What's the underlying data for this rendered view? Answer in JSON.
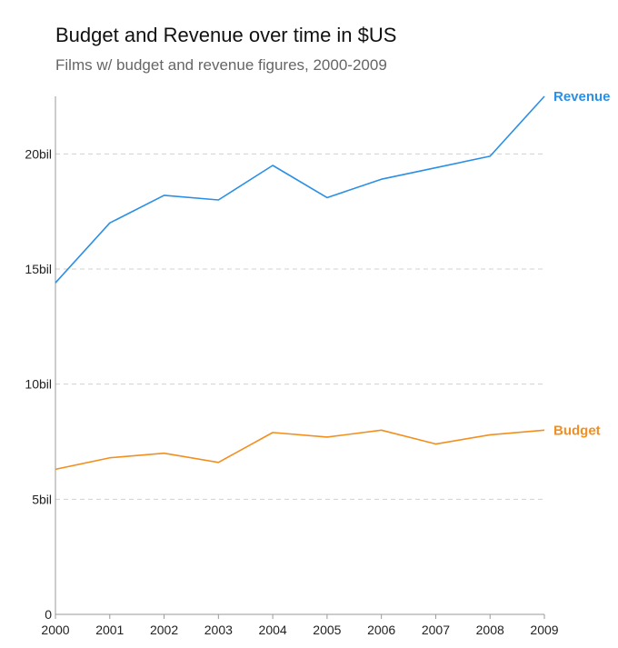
{
  "chart_data": {
    "type": "line",
    "title": "Budget and Revenue over time in $US",
    "subtitle": "Films w/ budget and revenue figures, 2000-2009",
    "x": [
      2000,
      2001,
      2002,
      2003,
      2004,
      2005,
      2006,
      2007,
      2008,
      2009
    ],
    "x_tick_labels": [
      "2000",
      "2001",
      "2002",
      "2003",
      "2004",
      "2005",
      "2006",
      "2007",
      "2008",
      "2009"
    ],
    "y_ticks": [
      0,
      5,
      10,
      15,
      20
    ],
    "y_tick_labels": [
      "0",
      "5bil",
      "10bil",
      "15bil",
      "20bil"
    ],
    "ylim": [
      0,
      22.5
    ],
    "y_unit": "bil",
    "grid": "horizontal dashed",
    "legend": "direct labels at line ends",
    "series": [
      {
        "name": "Revenue",
        "color": "#2b8fe6",
        "values": [
          14.4,
          17.0,
          18.2,
          18.0,
          19.5,
          18.1,
          18.9,
          19.4,
          19.9,
          22.5
        ]
      },
      {
        "name": "Budget",
        "color": "#f18f1f",
        "values": [
          6.3,
          6.8,
          7.0,
          6.6,
          7.9,
          7.7,
          8.0,
          7.4,
          7.8,
          8.0
        ]
      }
    ]
  }
}
